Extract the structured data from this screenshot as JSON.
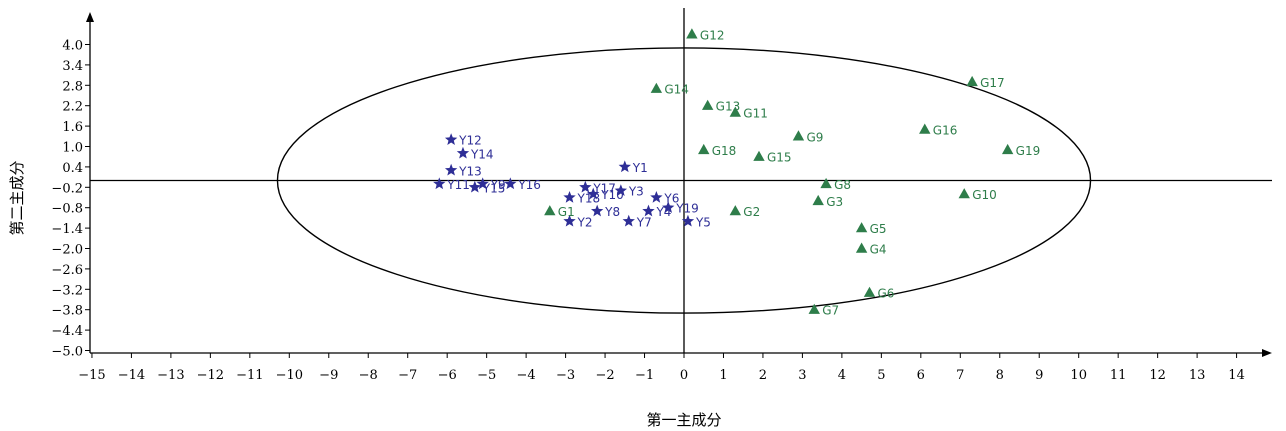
{
  "chart_data": {
    "type": "scatter",
    "title": "",
    "xlabel": "第一主成分",
    "ylabel": "第二主成分",
    "xlim": [
      -15,
      15
    ],
    "ylim": [
      -5.0,
      4.5
    ],
    "xticks": [
      -15,
      -14,
      -13,
      -12,
      -11,
      -10,
      -9,
      -8,
      -7,
      -6,
      -5,
      -4,
      -3,
      -2,
      -1,
      0,
      1,
      2,
      3,
      4,
      5,
      6,
      7,
      8,
      9,
      10,
      11,
      12,
      13,
      14
    ],
    "xtick_labels": [
      "−15",
      "−14",
      "−13",
      "−12",
      "−11",
      "−10",
      "−9",
      "−8",
      "−7",
      "−6",
      "−5",
      "−4",
      "−3",
      "−2",
      "−1",
      "0",
      "1",
      "2",
      "3",
      "4",
      "5",
      "6",
      "7",
      "8",
      "9",
      "10",
      "11",
      "12",
      "13",
      "14"
    ],
    "yticks": [
      4.0,
      3.4,
      2.8,
      2.2,
      1.6,
      1.0,
      0.4,
      -0.2,
      -0.8,
      -1.4,
      -2.0,
      -2.6,
      -3.2,
      -3.8,
      -4.4,
      -5.0
    ],
    "ytick_labels": [
      "4.0",
      "3.4",
      "2.8",
      "2.2",
      "1.6",
      "1.0",
      "0.4",
      "−0.2",
      "−0.8",
      "−1.4",
      "−2.0",
      "−2.6",
      "−3.2",
      "−3.8",
      "−4.4",
      "−5.0"
    ],
    "grid": false,
    "ellipse": {
      "center": [
        0,
        0
      ],
      "rx": 10.3,
      "ry": 3.9
    },
    "series": [
      {
        "marker": "star",
        "color": "#2e2e96",
        "points": [
          {
            "label": "Y1",
            "x": -1.5,
            "y": 0.4
          },
          {
            "label": "Y2",
            "x": -2.9,
            "y": -1.2
          },
          {
            "label": "Y3",
            "x": -1.6,
            "y": -0.3
          },
          {
            "label": "Y4",
            "x": -0.9,
            "y": -0.9
          },
          {
            "label": "Y5",
            "x": 0.1,
            "y": -1.2
          },
          {
            "label": "Y6",
            "x": -0.7,
            "y": -0.5
          },
          {
            "label": "Y7",
            "x": -1.4,
            "y": -1.2
          },
          {
            "label": "Y8",
            "x": -2.2,
            "y": -0.9
          },
          {
            "label": "Y9",
            "x": -5.1,
            "y": -0.1
          },
          {
            "label": "Y10",
            "x": -2.3,
            "y": -0.4
          },
          {
            "label": "Y11",
            "x": -6.2,
            "y": -0.1
          },
          {
            "label": "Y12",
            "x": -5.9,
            "y": 1.2
          },
          {
            "label": "Y13",
            "x": -5.9,
            "y": 0.3
          },
          {
            "label": "Y14",
            "x": -5.6,
            "y": 0.8
          },
          {
            "label": "Y15",
            "x": -5.3,
            "y": -0.2
          },
          {
            "label": "Y16",
            "x": -4.4,
            "y": -0.1
          },
          {
            "label": "Y17",
            "x": -2.5,
            "y": -0.2
          },
          {
            "label": "Y18",
            "x": -2.9,
            "y": -0.5
          },
          {
            "label": "Y19",
            "x": -0.4,
            "y": -0.8
          }
        ]
      },
      {
        "marker": "triangle",
        "color": "#2e7d4a",
        "points": [
          {
            "label": "G1",
            "x": -3.4,
            "y": -0.9
          },
          {
            "label": "G2",
            "x": 1.3,
            "y": -0.9
          },
          {
            "label": "G3",
            "x": 3.4,
            "y": -0.6
          },
          {
            "label": "G4",
            "x": 4.5,
            "y": -2.0
          },
          {
            "label": "G5",
            "x": 4.5,
            "y": -1.4
          },
          {
            "label": "G6",
            "x": 4.7,
            "y": -3.3
          },
          {
            "label": "G7",
            "x": 3.3,
            "y": -3.8
          },
          {
            "label": "G8",
            "x": 3.6,
            "y": -0.1
          },
          {
            "label": "G9",
            "x": 2.9,
            "y": 1.3
          },
          {
            "label": "G10",
            "x": 7.1,
            "y": -0.4
          },
          {
            "label": "G11",
            "x": 1.3,
            "y": 2.0
          },
          {
            "label": "G12",
            "x": 0.2,
            "y": 4.3
          },
          {
            "label": "G13",
            "x": 0.6,
            "y": 2.2
          },
          {
            "label": "G14",
            "x": -0.7,
            "y": 2.7
          },
          {
            "label": "G15",
            "x": 1.9,
            "y": 0.7
          },
          {
            "label": "G16",
            "x": 6.1,
            "y": 1.5
          },
          {
            "label": "G17",
            "x": 7.3,
            "y": 2.9
          },
          {
            "label": "G18",
            "x": 0.5,
            "y": 0.9
          },
          {
            "label": "G19",
            "x": 8.2,
            "y": 0.9
          }
        ]
      }
    ]
  }
}
